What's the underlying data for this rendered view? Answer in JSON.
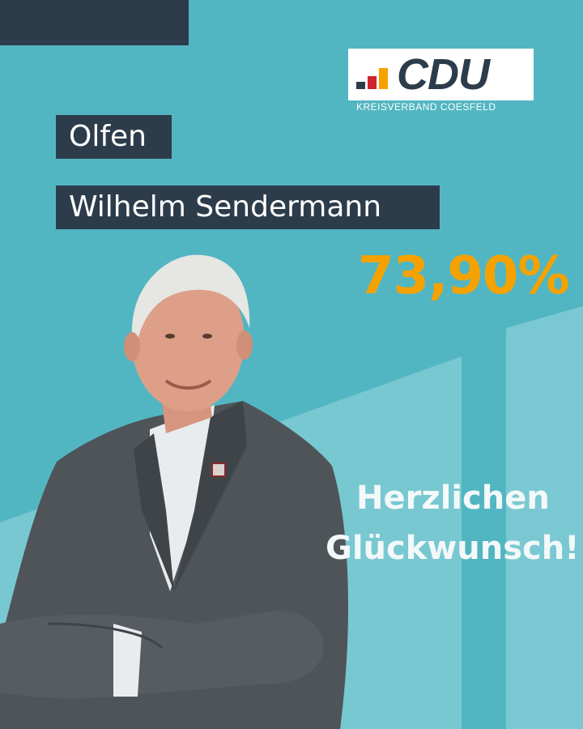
{
  "logo": {
    "wordmark": "CDU",
    "subtitle": "KREISVERBAND COESFELD"
  },
  "colors": {
    "background": "#52b6c2",
    "dark": "#2d3c4b",
    "accent": "#f5a200",
    "red": "#d1232a"
  },
  "city": "Olfen",
  "candidate_name": "Wilhelm Sendermann",
  "result_percent": "73,90%",
  "greeting": {
    "line1": "Herzlichen",
    "line2": "Glückwunsch!"
  }
}
